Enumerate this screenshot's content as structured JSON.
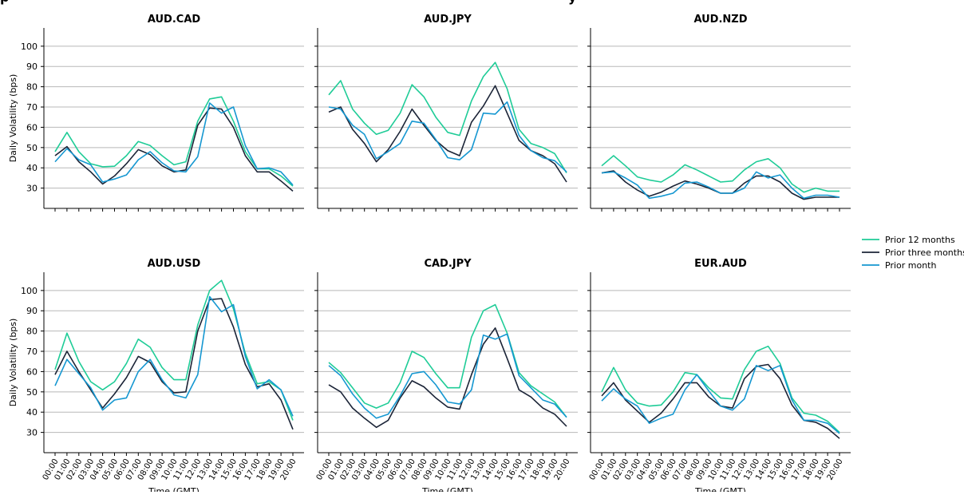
{
  "header_text": "p",
  "header_text_right": "y",
  "chart_data": {
    "type": "line",
    "categories": [
      "00:00",
      "01:00",
      "02:00",
      "03:00",
      "04:00",
      "05:00",
      "06:00",
      "07:00",
      "08:00",
      "09:00",
      "10:00",
      "11:00",
      "12:00",
      "13:00",
      "14:00",
      "15:00",
      "16:00",
      "17:00",
      "18:00",
      "19:00",
      "20:00"
    ],
    "xlabel": "Time (GMT)",
    "ylabel": "Daily Volatility (bps)",
    "yticks": [
      30,
      40,
      50,
      60,
      70,
      80,
      90,
      100
    ],
    "ylim": [
      20,
      109
    ],
    "grid": "horizontal",
    "legend": {
      "placement": "right",
      "entries": [
        "Prior 12 months",
        "Prior three months",
        "Prior month"
      ]
    },
    "series_colors": [
      "#1fcc97",
      "#1b2437",
      "#1597d1"
    ],
    "panels": [
      {
        "title": "AUD.CAD",
        "series": [
          {
            "name": "Prior 12 months",
            "values": [
              48,
              57.5,
              48,
              42,
              40.5,
              40.8,
              46,
              53,
              51,
              46,
              41.5,
              43,
              63,
              74,
              75,
              63,
              48,
              39.5,
              39.5,
              36,
              31
            ]
          },
          {
            "name": "Prior three months",
            "values": [
              46,
              50.5,
              43,
              38,
              32,
              36,
              42,
              49,
              46.5,
              41,
              38,
              39,
              61,
              69.5,
              69,
              60,
              46,
              38,
              38,
              33.5,
              28.5
            ]
          },
          {
            "name": "Prior month",
            "values": [
              43,
              49.5,
              44,
              41.5,
              33,
              34.5,
              36.5,
              44,
              48,
              42.5,
              38.5,
              38,
              45.5,
              72,
              67,
              70,
              51,
              39.5,
              40,
              38,
              31.5
            ]
          }
        ]
      },
      {
        "title": "AUD.JPY",
        "series": [
          {
            "name": "Prior 12 months",
            "values": [
              76,
              83,
              69,
              62,
              56.5,
              58.5,
              67,
              81,
              75,
              65,
              57.5,
              56,
              73,
              85,
              92,
              79,
              59,
              52,
              50,
              47,
              37.5
            ]
          },
          {
            "name": "Prior three months",
            "values": [
              67.5,
              70,
              59,
              52,
              43,
              49,
              58,
              69,
              61,
              53.5,
              48.5,
              46,
              62.5,
              70.5,
              80.5,
              67,
              53.5,
              48.5,
              46,
              42,
              33
            ]
          },
          {
            "name": "Prior month",
            "values": [
              70,
              69,
              61,
              56.5,
              44.5,
              48,
              52,
              63,
              62,
              54,
              45,
              44,
              49,
              67,
              66.5,
              72.5,
              56,
              48.5,
              45,
              43.5,
              38
            ]
          }
        ]
      },
      {
        "title": "AUD.NZD",
        "series": [
          {
            "name": "Prior 12 months",
            "values": [
              41,
              46,
              41,
              35.5,
              34,
              33,
              36.5,
              41.5,
              39,
              36,
              33,
              33.5,
              39,
              43,
              44.5,
              40,
              32,
              28,
              30,
              28.5,
              28.5
            ]
          },
          {
            "name": "Prior three months",
            "values": [
              37.5,
              38.5,
              33,
              29,
              26,
              28,
              31,
              33.5,
              32,
              30,
              27.5,
              27.5,
              32.5,
              36,
              36,
              33,
              27.5,
              24.5,
              25.5,
              25.5,
              25.5
            ]
          },
          {
            "name": "Prior month",
            "values": [
              37.5,
              38,
              35,
              31.5,
              25,
              26,
              27.5,
              32.5,
              33,
              30.5,
              27.5,
              27.5,
              30,
              38,
              35,
              36.5,
              30,
              25,
              26.5,
              26.5,
              25.5
            ]
          }
        ]
      },
      {
        "title": "AUD.USD",
        "series": [
          {
            "name": "Prior 12 months",
            "values": [
              61,
              79,
              65,
              55,
              51,
              55,
              64,
              76,
              72,
              62,
              56,
              56,
              83,
              100,
              105,
              91,
              69,
              54,
              55,
              51,
              36
            ]
          },
          {
            "name": "Prior three months",
            "values": [
              58.5,
              70,
              60,
              51,
              42,
              49,
              57,
              67.5,
              64.5,
              55,
              49.5,
              50,
              80,
              95.5,
              96,
              82,
              63.5,
              52.5,
              54,
              46,
              31.5
            ]
          },
          {
            "name": "Prior month",
            "values": [
              53,
              66,
              59,
              52,
              41,
              46,
              47,
              60,
              66,
              56,
              48.5,
              47,
              58.5,
              97,
              89.5,
              93,
              67.5,
              51.5,
              56,
              51,
              38
            ]
          }
        ]
      },
      {
        "title": "CAD.JPY",
        "series": [
          {
            "name": "Prior 12 months",
            "values": [
              64.5,
              59.5,
              52,
              44.5,
              42,
              44.5,
              54.5,
              70,
              67,
              59,
              52,
              52,
              77,
              90,
              93,
              79,
              59.5,
              53,
              49,
              45,
              37.5
            ]
          },
          {
            "name": "Prior three months",
            "values": [
              53.5,
              50,
              42,
              37,
              32.5,
              36,
              47,
              55.5,
              52.5,
              47,
              42.5,
              41.5,
              58.5,
              73.5,
              81.5,
              66.5,
              51,
              47.5,
              42,
              39,
              33
            ]
          },
          {
            "name": "Prior month",
            "values": [
              63,
              58,
              49,
              42,
              37,
              39,
              48,
              59,
              60,
              53.5,
              45,
              44,
              51,
              78,
              76,
              78.5,
              58,
              52,
              46,
              44,
              37.5
            ]
          }
        ]
      },
      {
        "title": "EUR.AUD",
        "series": [
          {
            "name": "Prior 12 months",
            "values": [
              50,
              62,
              51,
              44.5,
              43,
              43.5,
              50,
              59.5,
              58.5,
              52,
              47,
              46.5,
              61,
              70,
              72.5,
              64,
              47,
              39.5,
              38.5,
              35.5,
              30
            ]
          },
          {
            "name": "Prior three months",
            "values": [
              48,
              54.5,
              46,
              40.5,
              35,
              39.5,
              46.5,
              54.5,
              54.5,
              47.5,
              43,
              42,
              56.5,
              62.5,
              63.5,
              56.5,
              43.5,
              36,
              35,
              32,
              27
            ]
          },
          {
            "name": "Prior month",
            "values": [
              45.5,
              51.5,
              46.5,
              43,
              34.5,
              37,
              39,
              51,
              58.5,
              50.5,
              43,
              41,
              46.5,
              63,
              60.5,
              63,
              46,
              36,
              36,
              34.5,
              29.5
            ]
          }
        ]
      }
    ]
  }
}
